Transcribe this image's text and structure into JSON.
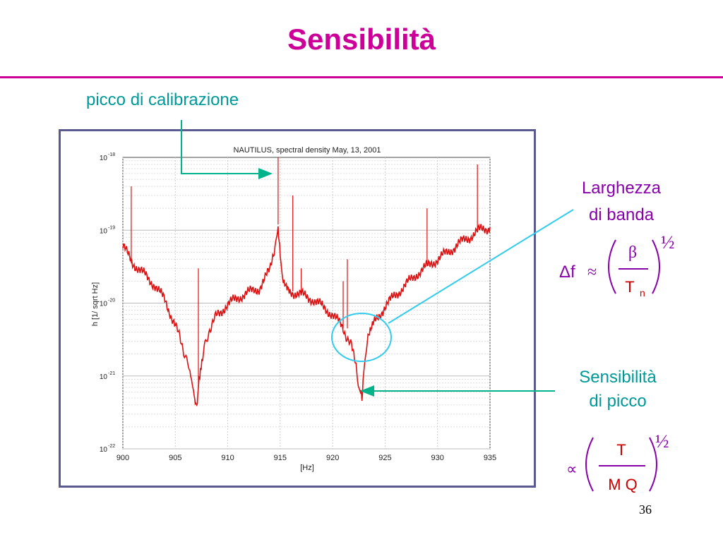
{
  "slide": {
    "title": "Sensibilità",
    "number": "36"
  },
  "callouts": {
    "calibration_peak": "picco di calibrazione",
    "bandwidth": [
      "Larghezza",
      "di banda"
    ],
    "peak_sensitivity": [
      "Sensibilità",
      "di picco"
    ]
  },
  "formulas": {
    "bandwidth": {
      "lhs": "Δf",
      "relation": "≈",
      "numerator": "β",
      "denominator_base": "T",
      "denominator_sub": "n",
      "exponent": "½"
    },
    "sensitivity": {
      "relation": "∝",
      "numerator": "T",
      "denominator": "M Q",
      "exponent": "½"
    }
  },
  "colors": {
    "title": "#cc0099",
    "teal": "#009999",
    "purple": "#8800aa",
    "cyan": "#33ccee",
    "curve": "#dd1111",
    "frame": "#5a5a8e"
  },
  "chart_data": {
    "type": "line",
    "title": "NAUTILUS, spectral density May, 13, 2001",
    "xlabel": "[Hz]",
    "ylabel": "h [1/ sqrt Hz]",
    "xlim": [
      900,
      935
    ],
    "ylim": [
      1e-22,
      1e-18
    ],
    "yscale": "log",
    "grid": true,
    "x_ticks": [
      "900",
      "905",
      "910",
      "915",
      "920",
      "925",
      "930",
      "935"
    ],
    "y_ticks": [
      {
        "base": "10",
        "exp": "-18"
      },
      {
        "base": "10",
        "exp": "-19"
      },
      {
        "base": "10",
        "exp": "-20"
      },
      {
        "base": "10",
        "exp": "-21"
      },
      {
        "base": "10",
        "exp": "-22"
      }
    ],
    "series": [
      {
        "x": [
          900.0,
          901.0,
          902.0,
          903.0,
          904.0,
          905.0,
          905.8,
          906.4,
          906.8,
          907.0,
          907.2,
          907.6,
          908.2,
          909.0,
          910.0,
          911.0,
          912.0,
          913.0,
          914.0,
          914.5,
          914.8,
          915.0,
          915.3,
          916.0,
          917.0,
          918.0,
          919.0,
          920.0,
          921.0,
          921.8,
          922.3,
          922.6,
          922.8,
          923.0,
          923.3,
          924.0,
          925.0,
          926.0,
          927.0,
          928.0,
          929.0,
          930.0,
          931.0,
          932.0,
          933.0,
          934.0,
          935.0
        ],
        "y": [
          6e-20,
          3.5e-20,
          2.5e-20,
          1.8e-20,
          1.1e-20,
          5e-21,
          2.3e-21,
          1.1e-21,
          5e-22,
          3.5e-22,
          7e-22,
          1.8e-21,
          4.2e-21,
          7e-21,
          9.5e-21,
          1.2e-20,
          1.4e-20,
          1.6e-20,
          2.8e-20,
          6e-20,
          1.2e-19,
          4e-20,
          1.8e-20,
          1.45e-20,
          1.3e-20,
          1.15e-20,
          9e-21,
          7e-21,
          4.5e-21,
          2.5e-21,
          1.2e-21,
          6e-22,
          5.5e-22,
          1.3e-21,
          3e-21,
          5.5e-21,
          9e-21,
          1.3e-20,
          1.8e-20,
          2.5e-20,
          3.2e-20,
          4e-20,
          5e-20,
          6.5e-20,
          8e-20,
          1e-19,
          1.1e-19
        ]
      }
    ],
    "spikes": [
      {
        "x": 900.8,
        "y": 4e-19
      },
      {
        "x": 907.2,
        "y": 3e-20
      },
      {
        "x": 914.8,
        "y": 1e-18
      },
      {
        "x": 916.2,
        "y": 3e-19
      },
      {
        "x": 917.0,
        "y": 3e-20
      },
      {
        "x": 921.0,
        "y": 2e-20
      },
      {
        "x": 921.4,
        "y": 4e-20
      },
      {
        "x": 929.0,
        "y": 2e-19
      },
      {
        "x": 933.8,
        "y": 8e-19
      }
    ]
  }
}
